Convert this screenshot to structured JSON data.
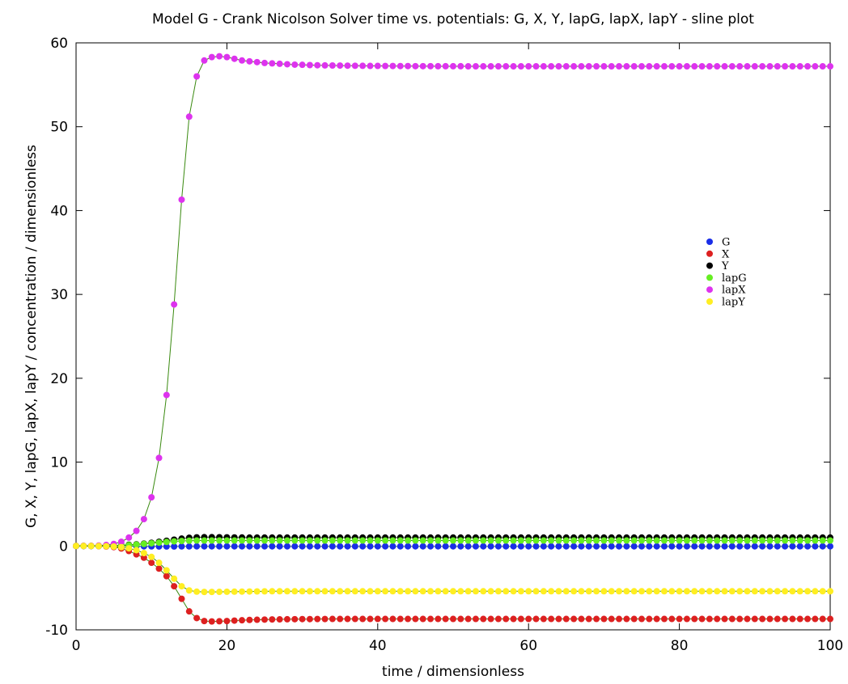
{
  "chart_data": {
    "type": "line",
    "title": "Model G - Crank Nicolson Solver time vs. potentials: G, X, Y, lapG, lapX, lapY - sline plot",
    "xlabel": "time / dimensionless",
    "ylabel": "G, X, Y, lapG, lapX, lapY / concentration / dimensionless",
    "xlim": [
      0,
      100
    ],
    "ylim": [
      -10,
      60
    ],
    "xticks": [
      0,
      20,
      40,
      60,
      80,
      100
    ],
    "yticks": [
      -10,
      0,
      10,
      20,
      30,
      40,
      50,
      60
    ],
    "x_start": 0,
    "x_step": 1,
    "legend_position": "right-center",
    "grid": false,
    "series": [
      {
        "name": "G",
        "color": "#1a2ee8",
        "values": [
          0,
          0,
          0,
          0,
          0,
          0,
          -0.01,
          -0.02,
          -0.03,
          -0.04,
          -0.05,
          -0.06,
          -0.06,
          -0.06,
          -0.05,
          -0.05,
          -0.04,
          -0.04,
          -0.04,
          -0.04,
          -0.04,
          -0.04,
          -0.04,
          -0.04,
          -0.04,
          -0.04,
          -0.04,
          -0.04,
          -0.04,
          -0.04,
          -0.04,
          -0.04,
          -0.04,
          -0.04,
          -0.04,
          -0.04,
          -0.04,
          -0.04,
          -0.04,
          -0.04,
          -0.04,
          -0.04,
          -0.04,
          -0.04,
          -0.04,
          -0.04,
          -0.04,
          -0.04,
          -0.04,
          -0.04,
          -0.04,
          -0.04,
          -0.04,
          -0.04,
          -0.04,
          -0.04,
          -0.04,
          -0.04,
          -0.04,
          -0.04,
          -0.04,
          -0.04,
          -0.04,
          -0.04,
          -0.04,
          -0.04,
          -0.04,
          -0.04,
          -0.04,
          -0.04,
          -0.04,
          -0.04,
          -0.04,
          -0.04,
          -0.04,
          -0.04,
          -0.04,
          -0.04,
          -0.04,
          -0.04,
          -0.04,
          -0.04,
          -0.04,
          -0.04,
          -0.04,
          -0.04,
          -0.04,
          -0.04,
          -0.04,
          -0.04,
          -0.04,
          -0.04,
          -0.04,
          -0.04,
          -0.04,
          -0.04,
          -0.04,
          -0.04,
          -0.04,
          -0.04,
          -0.04
        ]
      },
      {
        "name": "X",
        "color": "#dd2020",
        "values": [
          0,
          0,
          0,
          -0.02,
          -0.06,
          -0.13,
          -0.3,
          -0.6,
          -1.0,
          -1.4,
          -2.0,
          -2.7,
          -3.6,
          -4.8,
          -6.3,
          -7.8,
          -8.6,
          -8.95,
          -9.0,
          -8.98,
          -8.95,
          -8.9,
          -8.86,
          -8.82,
          -8.8,
          -8.78,
          -8.76,
          -8.75,
          -8.74,
          -8.73,
          -8.72,
          -8.72,
          -8.71,
          -8.71,
          -8.7,
          -8.7,
          -8.7,
          -8.7,
          -8.7,
          -8.7,
          -8.7,
          -8.7,
          -8.7,
          -8.7,
          -8.7,
          -8.7,
          -8.7,
          -8.7,
          -8.7,
          -8.7,
          -8.7,
          -8.7,
          -8.7,
          -8.7,
          -8.7,
          -8.7,
          -8.7,
          -8.7,
          -8.7,
          -8.7,
          -8.7,
          -8.7,
          -8.7,
          -8.7,
          -8.7,
          -8.7,
          -8.7,
          -8.7,
          -8.7,
          -8.7,
          -8.7,
          -8.7,
          -8.7,
          -8.7,
          -8.7,
          -8.7,
          -8.7,
          -8.7,
          -8.7,
          -8.7,
          -8.7,
          -8.7,
          -8.7,
          -8.7,
          -8.7,
          -8.7,
          -8.7,
          -8.7,
          -8.7,
          -8.7,
          -8.7,
          -8.7,
          -8.7,
          -8.7,
          -8.7,
          -8.7,
          -8.7,
          -8.7,
          -8.7,
          -8.7,
          -8.7
        ]
      },
      {
        "name": "Y",
        "color": "#000000",
        "values": [
          0,
          0,
          0,
          0.01,
          0.03,
          0.06,
          0.1,
          0.15,
          0.2,
          0.28,
          0.38,
          0.5,
          0.62,
          0.75,
          0.88,
          0.98,
          1.03,
          1.05,
          1.05,
          1.04,
          1.03,
          1.02,
          1.01,
          1.0,
          1.0,
          1.0,
          1.0,
          1.0,
          1.0,
          1.0,
          1.0,
          1.0,
          1.0,
          1.0,
          1.0,
          1.0,
          1.0,
          1.0,
          1.0,
          1.0,
          1.0,
          1.0,
          1.0,
          1.0,
          1.0,
          1.0,
          1.0,
          1.0,
          1.0,
          1.0,
          1.0,
          1.0,
          1.0,
          1.0,
          1.0,
          1.0,
          1.0,
          1.0,
          1.0,
          1.0,
          1.0,
          1.0,
          1.0,
          1.0,
          1.0,
          1.0,
          1.0,
          1.0,
          1.0,
          1.0,
          1.0,
          1.0,
          1.0,
          1.0,
          1.0,
          1.0,
          1.0,
          1.0,
          1.0,
          1.0,
          1.0,
          1.0,
          1.0,
          1.0,
          1.0,
          1.0,
          1.0,
          1.0,
          1.0,
          1.0,
          1.0,
          1.0,
          1.0,
          1.0,
          1.0,
          1.0,
          1.0,
          1.0,
          1.0,
          1.0,
          1.0
        ]
      },
      {
        "name": "lapG",
        "color": "#66ee22",
        "values": [
          0,
          0,
          0,
          0,
          0.01,
          0.02,
          0.05,
          0.1,
          0.16,
          0.24,
          0.32,
          0.4,
          0.48,
          0.55,
          0.6,
          0.63,
          0.65,
          0.65,
          0.65,
          0.65,
          0.65,
          0.65,
          0.65,
          0.65,
          0.65,
          0.65,
          0.65,
          0.65,
          0.65,
          0.65,
          0.65,
          0.65,
          0.65,
          0.65,
          0.65,
          0.65,
          0.65,
          0.65,
          0.65,
          0.65,
          0.65,
          0.65,
          0.65,
          0.65,
          0.65,
          0.65,
          0.65,
          0.65,
          0.65,
          0.65,
          0.65,
          0.65,
          0.65,
          0.65,
          0.65,
          0.65,
          0.65,
          0.65,
          0.65,
          0.65,
          0.65,
          0.65,
          0.65,
          0.65,
          0.65,
          0.65,
          0.65,
          0.65,
          0.65,
          0.65,
          0.65,
          0.65,
          0.65,
          0.65,
          0.65,
          0.65,
          0.65,
          0.65,
          0.65,
          0.65,
          0.65,
          0.65,
          0.65,
          0.65,
          0.65,
          0.65,
          0.65,
          0.65,
          0.65,
          0.65,
          0.65,
          0.65,
          0.65,
          0.65,
          0.65,
          0.65,
          0.65,
          0.65,
          0.65,
          0.65,
          0.65
        ]
      },
      {
        "name": "lapX",
        "color": "#dd33ee",
        "values": [
          0,
          0.01,
          0.02,
          0.05,
          0.12,
          0.25,
          0.5,
          1.0,
          1.8,
          3.2,
          5.8,
          10.5,
          18.0,
          28.8,
          41.3,
          51.2,
          56.0,
          57.9,
          58.3,
          58.4,
          58.3,
          58.1,
          57.9,
          57.8,
          57.7,
          57.6,
          57.55,
          57.5,
          57.45,
          57.4,
          57.38,
          57.35,
          57.33,
          57.31,
          57.3,
          57.29,
          57.28,
          57.27,
          57.26,
          57.25,
          57.25,
          57.24,
          57.24,
          57.23,
          57.23,
          57.22,
          57.22,
          57.22,
          57.21,
          57.21,
          57.21,
          57.21,
          57.2,
          57.2,
          57.2,
          57.2,
          57.2,
          57.2,
          57.2,
          57.2,
          57.2,
          57.2,
          57.2,
          57.2,
          57.2,
          57.2,
          57.2,
          57.2,
          57.2,
          57.2,
          57.2,
          57.2,
          57.2,
          57.2,
          57.2,
          57.2,
          57.2,
          57.2,
          57.2,
          57.2,
          57.2,
          57.2,
          57.2,
          57.2,
          57.2,
          57.2,
          57.2,
          57.2,
          57.2,
          57.2,
          57.2,
          57.2,
          57.2,
          57.2,
          57.2,
          57.2,
          57.2,
          57.2,
          57.2,
          57.2,
          57.2
        ]
      },
      {
        "name": "lapY",
        "color": "#ffee22",
        "values": [
          0,
          0,
          0,
          -0.01,
          -0.03,
          -0.07,
          -0.14,
          -0.28,
          -0.5,
          -0.85,
          -1.3,
          -2.0,
          -2.9,
          -3.9,
          -4.8,
          -5.3,
          -5.45,
          -5.48,
          -5.48,
          -5.47,
          -5.46,
          -5.45,
          -5.44,
          -5.43,
          -5.42,
          -5.41,
          -5.4,
          -5.4,
          -5.4,
          -5.4,
          -5.4,
          -5.4,
          -5.4,
          -5.4,
          -5.4,
          -5.4,
          -5.4,
          -5.4,
          -5.4,
          -5.4,
          -5.4,
          -5.4,
          -5.4,
          -5.4,
          -5.4,
          -5.4,
          -5.4,
          -5.4,
          -5.4,
          -5.4,
          -5.4,
          -5.4,
          -5.4,
          -5.4,
          -5.4,
          -5.4,
          -5.4,
          -5.4,
          -5.4,
          -5.4,
          -5.4,
          -5.4,
          -5.4,
          -5.4,
          -5.4,
          -5.4,
          -5.4,
          -5.4,
          -5.4,
          -5.4,
          -5.4,
          -5.4,
          -5.4,
          -5.4,
          -5.4,
          -5.4,
          -5.4,
          -5.4,
          -5.4,
          -5.4,
          -5.4,
          -5.4,
          -5.4,
          -5.4,
          -5.4,
          -5.4,
          -5.4,
          -5.4,
          -5.4,
          -5.4,
          -5.4,
          -5.4,
          -5.4,
          -5.4,
          -5.4,
          -5.4,
          -5.4,
          -5.4,
          -5.4,
          -5.4,
          -5.4
        ]
      }
    ],
    "line_color": "#3a8a10"
  }
}
